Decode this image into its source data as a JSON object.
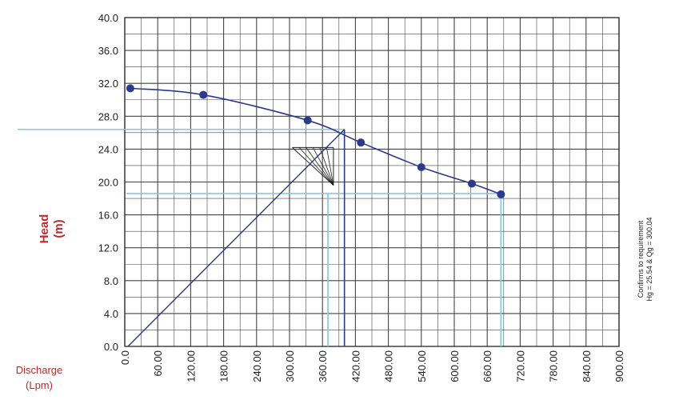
{
  "chart_data": {
    "type": "line",
    "title": "",
    "ylabel": "Head",
    "ylabel_unit": "(m)",
    "xlabel": "Discharge",
    "xlabel_unit": "(Lpm)",
    "xlim": [
      0,
      900
    ],
    "ylim": [
      0,
      40
    ],
    "x_ticks": [
      "0.0",
      "60.00",
      "120.00",
      "180.00",
      "240.00",
      "300.00",
      "360.00",
      "420.00",
      "480.00",
      "540.00",
      "600.00",
      "660.00",
      "720.00",
      "780.00",
      "840.00",
      "900.00"
    ],
    "y_ticks": [
      "0.0",
      "4.0",
      "8.0",
      "12.0",
      "16.0",
      "20.0",
      "24.0",
      "28.0",
      "32.0",
      "36.0",
      "40.0"
    ],
    "grid": true,
    "series": [
      {
        "points": [
          [
            10,
            31.4
          ],
          [
            143,
            30.6
          ],
          [
            333,
            27.5
          ],
          [
            430,
            24.8
          ],
          [
            540,
            21.8
          ],
          [
            632,
            19.8
          ],
          [
            685,
            18.5
          ]
        ]
      }
    ],
    "system_line": [
      [
        0,
        0
      ],
      [
        400,
        26.4
      ]
    ],
    "operating_point": {
      "x": 400,
      "y": 26.4
    },
    "reference_lines": {
      "head_levels": [
        26.4,
        18.6
      ],
      "discharge_levels": [
        370,
        400,
        685
      ]
    },
    "hatch_region": {
      "x_range": [
        305,
        380
      ],
      "y_range": [
        19.6,
        24.2
      ]
    },
    "annotation": [
      "Confirms to requirement",
      "Hg = 25.54 & Qg = 300.04"
    ],
    "colors": {
      "curve": "#2b3a8c",
      "points": "#2b3a8c",
      "system_line": "#2b3a8c",
      "reference": "#7ec8e3",
      "grid": "#444444",
      "label": "#c0282d"
    }
  }
}
